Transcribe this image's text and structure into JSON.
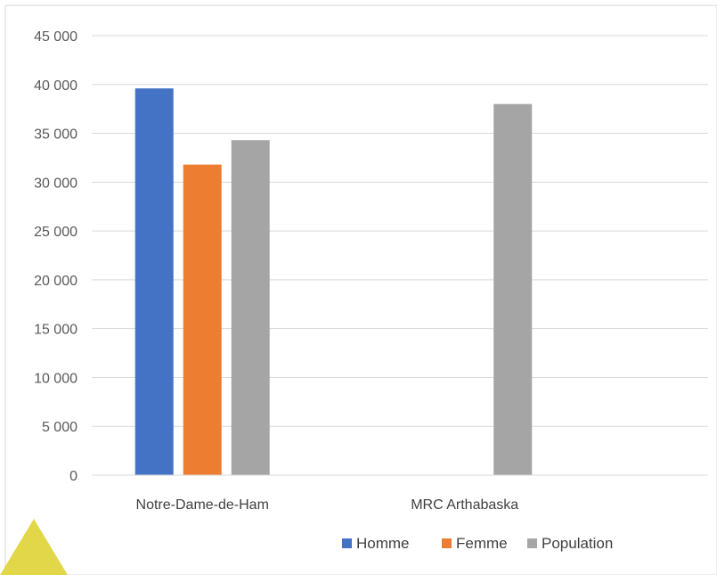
{
  "chart_data": {
    "type": "bar",
    "categories": [
      "Notre-Dame-de-Ham",
      "MRC Arthabaska"
    ],
    "series": [
      {
        "name": "Homme",
        "color": "#4472C4",
        "values": [
          39600,
          null
        ]
      },
      {
        "name": "Femme",
        "color": "#ED7D31",
        "values": [
          31800,
          null
        ]
      },
      {
        "name": "Population",
        "color": "#A5A5A5",
        "values": [
          34300,
          38000
        ]
      }
    ],
    "ylim": [
      0,
      45000
    ],
    "yticks": [
      0,
      5000,
      10000,
      15000,
      20000,
      25000,
      30000,
      35000,
      40000,
      45000
    ],
    "ytick_labels": [
      "0",
      "5 000",
      "10 000",
      "15 000",
      "20 000",
      "25 000",
      "30 000",
      "35 000",
      "40 000",
      "45 000"
    ],
    "grid": true,
    "legend_position": "bottom-right"
  },
  "decoration": {
    "corner_triangle_color": "#E2D649"
  }
}
